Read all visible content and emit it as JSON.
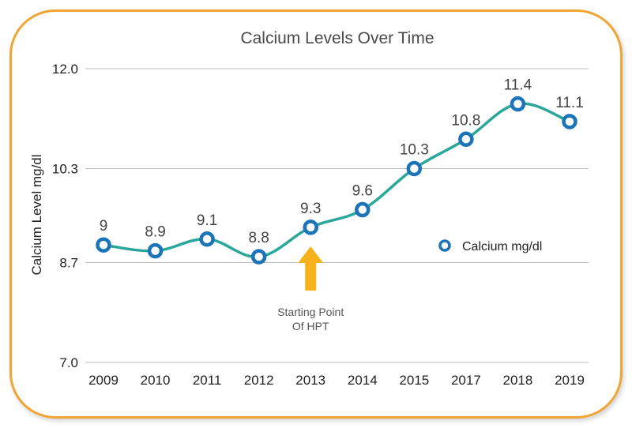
{
  "chart_data": {
    "type": "line",
    "title": "Calcium Levels Over Time",
    "xlabel": "",
    "ylabel": "Calcium Level mg/dl",
    "categories": [
      "2009",
      "2010",
      "2011",
      "2012",
      "2013",
      "2014",
      "2015",
      "2017",
      "2018",
      "2019"
    ],
    "series": [
      {
        "name": "Calcium mg/dl",
        "values": [
          9,
          8.9,
          9.1,
          8.8,
          9.3,
          9.6,
          10.3,
          10.8,
          11.4,
          11.1
        ],
        "color": "#2aa79b",
        "marker_color": "#1b74b8"
      }
    ],
    "data_labels": [
      "9",
      "8.9",
      "9.1",
      "8.8",
      "9.3",
      "9.6",
      "10.3",
      "10.8",
      "11.4",
      "11.1"
    ],
    "ylim": [
      7.0,
      12.0
    ],
    "yticks": [
      7.0,
      8.7,
      10.3,
      12.0
    ],
    "ytick_labels": [
      "7.0",
      "8.7",
      "10.3",
      "12.0"
    ],
    "grid": true,
    "legend_position": "right",
    "annotation": {
      "category": "2013",
      "lines": [
        "Starting Point",
        "Of HPT"
      ],
      "arrow_color": "#f7b21b"
    },
    "frame_color": "#f0a534"
  }
}
